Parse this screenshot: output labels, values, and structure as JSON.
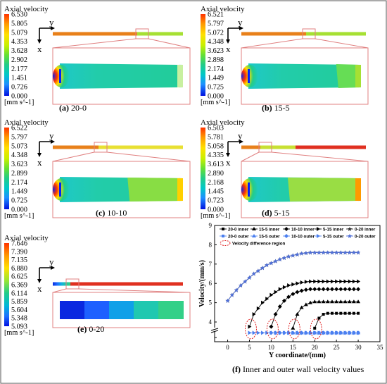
{
  "legend_title": "Axial velocity",
  "unit": "[mm s^-1]",
  "panels": [
    {
      "id": "a",
      "caption_letter": "(a)",
      "caption_text": " 20-0",
      "ticks": [
        "6.530",
        "5.805",
        "5.079",
        "4.353",
        "3.628",
        "2.902",
        "2.177",
        "1.451",
        "0.726",
        "0.000"
      ]
    },
    {
      "id": "b",
      "caption_letter": "(b)",
      "caption_text": " 15-5",
      "ticks": [
        "6.521",
        "5.797",
        "5.072",
        "4.348",
        "3.623",
        "2.898",
        "2.174",
        "1.449",
        "0.725",
        "0.000"
      ]
    },
    {
      "id": "c",
      "caption_letter": "(c)",
      "caption_text": " 10-10",
      "ticks": [
        "6.522",
        "5.797",
        "5.073",
        "4.348",
        "3.623",
        "2.899",
        "2.174",
        "1.449",
        "0.725",
        "0.000"
      ]
    },
    {
      "id": "d",
      "caption_letter": "(d)",
      "caption_text": " 5-15",
      "ticks": [
        "6.503",
        "5.781",
        "5.058",
        "4.335",
        "3.613",
        "2.890",
        "2.168",
        "1.445",
        "0.723",
        "0.000"
      ]
    },
    {
      "id": "e",
      "caption_letter": "(e)",
      "caption_text": " 0-20",
      "ticks": [
        "7.646",
        "7.390",
        "7.135",
        "6.880",
        "6.625",
        "6.369",
        "6.114",
        "5.859",
        "5.604",
        "5.348",
        "5.093"
      ]
    }
  ],
  "axis_y": "y",
  "axis_x": "x",
  "colors": {
    "scale": [
      "#ff3300",
      "#ff9900",
      "#ffe000",
      "#c8f000",
      "#66e033",
      "#22cc88",
      "#00c8c8",
      "#1e90ff",
      "#1e3cff",
      "#0000e0"
    ],
    "inner": "#000000",
    "outer": "#4a7ff0",
    "zero20": "#5070d8",
    "annot": "#e02020"
  },
  "chart_data": {
    "type": "line",
    "caption_letter": "(f)",
    "caption_text": " Inner and outer wall velocity values",
    "xlabel": "Y coordinate/(mm)",
    "ylabel": "Velocity/(mm/s)",
    "xlim": [
      -3,
      35
    ],
    "ylim": [
      3,
      9
    ],
    "x_ticks": [
      "0",
      "5",
      "10",
      "15",
      "20",
      "25",
      "30",
      "35"
    ],
    "y_ticks": [
      "3",
      "4",
      "5",
      "6",
      "7",
      "8",
      "9"
    ],
    "legend": [
      "20-0 inner",
      "15-5 inner",
      "10-10 inner",
      "5-15 inner",
      "0-20 inner",
      "20-0 outer",
      "15-5 outer",
      "10-10 outer",
      "5-15 outer",
      "0-20 outer"
    ],
    "annotation": "Velocity difference region",
    "x": [
      0,
      1,
      2,
      3,
      4,
      5,
      6,
      7,
      8,
      9,
      10,
      11,
      12,
      13,
      14,
      15,
      16,
      17,
      18,
      19,
      20,
      21,
      22,
      23,
      24,
      25,
      26,
      27,
      28,
      29,
      30
    ],
    "series": [
      {
        "name": "0-20 inner",
        "y": [
          5.1,
          5.4,
          5.65,
          5.9,
          6.1,
          6.3,
          6.5,
          6.65,
          6.8,
          6.95,
          7.05,
          7.15,
          7.25,
          7.32,
          7.4,
          7.45,
          7.5,
          7.55,
          7.57,
          7.6,
          7.6,
          7.6,
          7.6,
          7.6,
          7.6,
          7.6,
          7.6,
          7.6,
          7.6,
          7.6,
          7.6
        ]
      },
      {
        "name": "0-20 outer",
        "y": [
          5.1,
          5.4,
          5.65,
          5.9,
          6.1,
          6.3,
          6.5,
          6.65,
          6.8,
          6.95,
          7.05,
          7.15,
          7.25,
          7.32,
          7.4,
          7.45,
          7.5,
          7.55,
          7.57,
          7.6,
          7.6,
          7.6,
          7.6,
          7.6,
          7.6,
          7.6,
          7.6,
          7.6,
          7.6,
          7.6,
          7.6
        ]
      },
      {
        "name": "5-15 inner",
        "y": [
          null,
          null,
          null,
          null,
          null,
          3.7,
          4.4,
          4.7,
          5.0,
          5.2,
          5.4,
          5.55,
          5.7,
          5.8,
          5.9,
          5.95,
          6.0,
          6.05,
          6.08,
          6.1,
          6.1,
          6.1,
          6.1,
          6.1,
          6.1,
          6.1,
          6.1,
          6.1,
          6.1,
          6.1,
          6.1
        ]
      },
      {
        "name": "5-15 outer",
        "y": [
          null,
          null,
          null,
          null,
          null,
          3.3,
          3.3,
          3.3,
          3.3,
          3.3,
          3.3,
          3.3,
          3.3,
          3.3,
          3.3,
          3.3,
          3.3,
          3.3,
          3.3,
          3.3,
          3.3,
          3.3,
          3.3,
          3.3,
          3.3,
          3.3,
          3.3,
          3.3,
          3.3,
          3.3,
          3.3
        ]
      },
      {
        "name": "10-10 inner",
        "y": [
          null,
          null,
          null,
          null,
          null,
          null,
          null,
          null,
          null,
          null,
          3.7,
          4.4,
          4.8,
          5.1,
          5.3,
          5.45,
          5.55,
          5.62,
          5.67,
          5.7,
          5.7,
          5.7,
          5.7,
          5.7,
          5.7,
          5.7,
          5.7,
          5.7,
          5.7,
          5.7,
          5.7
        ]
      },
      {
        "name": "10-10 outer",
        "y": [
          null,
          null,
          null,
          null,
          null,
          null,
          null,
          null,
          null,
          null,
          3.3,
          3.3,
          3.3,
          3.3,
          3.3,
          3.3,
          3.3,
          3.3,
          3.3,
          3.3,
          3.3,
          3.3,
          3.3,
          3.3,
          3.3,
          3.3,
          3.3,
          3.3,
          3.3,
          3.3,
          3.3
        ]
      },
      {
        "name": "15-5 inner",
        "y": [
          null,
          null,
          null,
          null,
          null,
          null,
          null,
          null,
          null,
          null,
          null,
          null,
          null,
          null,
          null,
          3.6,
          4.4,
          4.75,
          4.9,
          5.0,
          5.05,
          5.05,
          5.05,
          5.05,
          5.05,
          5.05,
          5.05,
          5.05,
          5.05,
          5.05,
          5.05
        ]
      },
      {
        "name": "15-5 outer",
        "y": [
          null,
          null,
          null,
          null,
          null,
          null,
          null,
          null,
          null,
          null,
          null,
          null,
          null,
          null,
          null,
          3.3,
          3.3,
          3.3,
          3.3,
          3.3,
          3.3,
          3.3,
          3.3,
          3.3,
          3.3,
          3.3,
          3.3,
          3.3,
          3.3,
          3.3,
          3.3
        ]
      },
      {
        "name": "20-0 inner",
        "y": [
          null,
          null,
          null,
          null,
          null,
          null,
          null,
          null,
          null,
          null,
          null,
          null,
          null,
          null,
          null,
          null,
          null,
          null,
          null,
          null,
          3.6,
          4.2,
          4.4,
          4.45,
          4.45,
          4.45,
          4.45,
          4.45,
          4.45,
          4.45,
          4.45
        ]
      },
      {
        "name": "20-0 outer",
        "y": [
          null,
          null,
          null,
          null,
          null,
          null,
          null,
          null,
          null,
          null,
          null,
          null,
          null,
          null,
          null,
          null,
          null,
          null,
          null,
          null,
          3.3,
          3.3,
          3.3,
          3.3,
          3.3,
          3.3,
          3.3,
          3.3,
          3.3,
          3.3,
          3.3
        ]
      }
    ]
  }
}
